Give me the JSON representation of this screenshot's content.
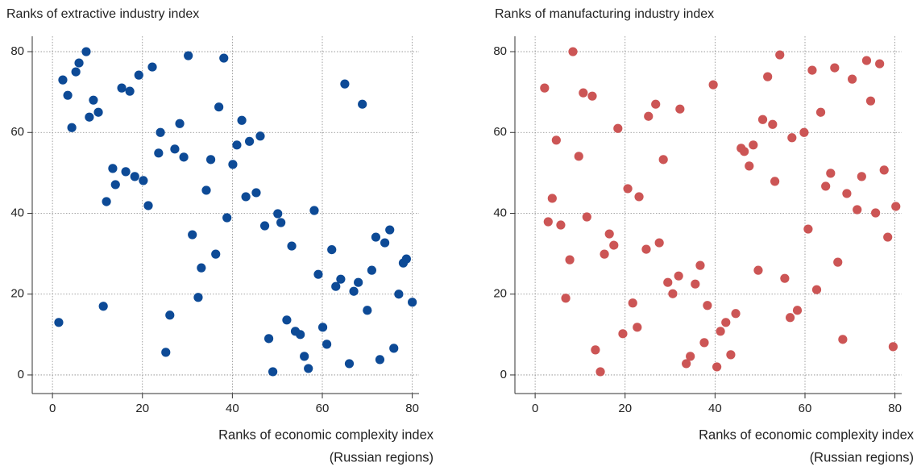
{
  "chart_data": [
    {
      "type": "scatter",
      "title": "Ranks of extractive industry index",
      "x_label": [
        "Ranks of economic complexity index",
        "(Russian regions)"
      ],
      "color": "#0d4a96",
      "grid": true,
      "xlim": [
        -4.5,
        81.5
      ],
      "ylim": [
        -4.6,
        83.8
      ],
      "xticks": [
        0,
        20,
        40,
        60,
        80
      ],
      "yticks": [
        0,
        20,
        40,
        60,
        80
      ],
      "x": [
        1.4,
        2.3,
        3.4,
        4.3,
        5.2,
        5.9,
        7.5,
        8.2,
        9.1,
        10.2,
        11.3,
        12.0,
        13.4,
        14.0,
        15.4,
        16.3,
        17.2,
        18.3,
        19.2,
        20.2,
        21.3,
        22.2,
        23.6,
        24.0,
        25.2,
        26.1,
        27.2,
        28.3,
        29.2,
        30.2,
        31.1,
        32.4,
        33.1,
        34.2,
        35.2,
        36.3,
        37.0,
        38.1,
        38.8,
        40.1,
        41.0,
        42.1,
        43.0,
        43.8,
        45.3,
        46.2,
        47.2,
        48.1,
        49.0,
        50.1,
        50.8,
        52.1,
        53.2,
        54.0,
        55.1,
        56.0,
        56.9,
        58.2,
        59.1,
        60.1,
        61.0,
        62.1,
        63.0,
        64.1,
        65.0,
        66.0,
        67.0,
        68.0,
        68.9,
        70.0,
        71.0,
        71.9,
        72.8,
        73.9,
        75.0,
        75.9,
        77.0,
        78.0,
        78.7,
        80.0
      ],
      "y": [
        13.0,
        73.0,
        69.2,
        61.2,
        75.0,
        77.2,
        80.0,
        63.8,
        68.0,
        65.0,
        17.0,
        42.9,
        51.1,
        47.1,
        71.0,
        50.3,
        70.2,
        49.1,
        74.2,
        48.1,
        41.9,
        76.2,
        54.9,
        60.0,
        5.6,
        14.8,
        55.9,
        62.2,
        53.9,
        79.0,
        34.7,
        19.2,
        26.5,
        45.7,
        53.3,
        29.9,
        66.3,
        78.4,
        38.9,
        52.1,
        56.9,
        63.0,
        44.1,
        57.8,
        45.1,
        59.1,
        36.9,
        9.0,
        0.8,
        39.9,
        37.7,
        13.6,
        31.9,
        10.8,
        10.0,
        4.6,
        1.6,
        40.7,
        24.9,
        11.8,
        7.6,
        31.0,
        21.9,
        23.7,
        72.0,
        2.8,
        20.7,
        22.9,
        67.0,
        16.0,
        25.9,
        34.1,
        3.8,
        32.7,
        35.9,
        6.6,
        20.0,
        27.7,
        28.7,
        18.0
      ]
    },
    {
      "type": "scatter",
      "title": "Ranks of manufacturing industry index",
      "x_label": [
        "Ranks of economic complexity index",
        "(Russian regions)"
      ],
      "color": "#cc5555",
      "grid": true,
      "xlim": [
        -4.5,
        81.5
      ],
      "ylim": [
        -4.6,
        83.8
      ],
      "xticks": [
        0,
        20,
        40,
        60,
        80
      ],
      "yticks": [
        0,
        20,
        40,
        60,
        80
      ],
      "x": [
        2.1,
        2.9,
        3.8,
        4.7,
        5.7,
        6.8,
        7.7,
        8.4,
        9.7,
        10.7,
        11.5,
        12.7,
        13.4,
        14.5,
        15.4,
        16.5,
        17.5,
        18.4,
        19.5,
        20.6,
        21.7,
        22.7,
        23.1,
        24.7,
        25.2,
        26.8,
        27.6,
        28.5,
        29.5,
        30.6,
        31.9,
        32.2,
        33.6,
        34.5,
        35.6,
        36.7,
        37.6,
        38.3,
        39.6,
        40.4,
        41.2,
        42.4,
        43.5,
        44.6,
        45.8,
        46.5,
        47.6,
        48.5,
        49.6,
        50.6,
        51.7,
        52.8,
        53.3,
        54.4,
        55.5,
        56.7,
        57.1,
        58.3,
        59.8,
        60.7,
        61.6,
        62.6,
        63.5,
        64.6,
        65.7,
        66.6,
        67.3,
        68.4,
        69.3,
        70.5,
        71.6,
        72.6,
        73.7,
        74.6,
        75.7,
        76.6,
        77.6,
        78.4,
        79.6,
        80.2
      ],
      "y": [
        71.0,
        37.9,
        43.7,
        58.1,
        37.1,
        19.0,
        28.5,
        80.0,
        54.1,
        69.8,
        39.1,
        69.0,
        6.2,
        0.8,
        29.9,
        34.9,
        32.1,
        61.0,
        10.2,
        46.1,
        17.8,
        11.8,
        44.1,
        31.1,
        64.0,
        67.0,
        32.7,
        53.3,
        22.9,
        20.1,
        24.5,
        65.8,
        2.8,
        4.6,
        22.5,
        27.1,
        8.0,
        17.2,
        71.8,
        2.0,
        10.8,
        13.0,
        5.0,
        15.2,
        56.1,
        55.3,
        51.7,
        56.9,
        25.9,
        63.2,
        73.8,
        62.0,
        47.9,
        79.2,
        23.9,
        14.2,
        58.7,
        16.0,
        60.0,
        36.1,
        75.4,
        21.1,
        65.0,
        46.7,
        49.9,
        76.0,
        27.9,
        8.8,
        44.9,
        73.2,
        40.9,
        49.1,
        77.8,
        67.8,
        40.1,
        77.0,
        50.7,
        34.1,
        7.0,
        41.7
      ]
    }
  ]
}
